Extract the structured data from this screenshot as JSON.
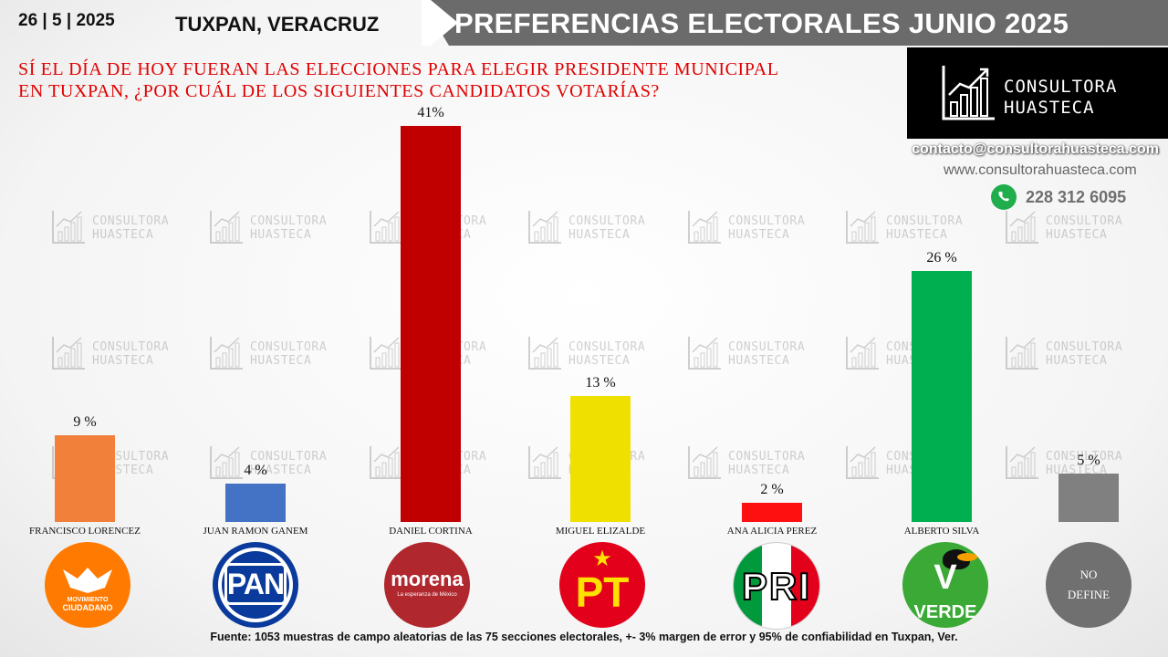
{
  "header": {
    "date": "26 | 5 | 2025",
    "location": "TUXPAN, VERACRUZ",
    "title": "PREFERENCIAS ELECTORALES JUNIO 2025"
  },
  "question_line1": "SÍ EL DÍA DE HOY FUERAN LAS ELECCIONES PARA ELEGIR PRESIDENTE MUNICIPAL",
  "question_line2": "EN TUXPAN,  ¿POR CUÁL DE LOS SIGUIENTES CANDIDATOS VOTARÍAS?",
  "brand": {
    "name_line1": "CONSULTORA",
    "name_line2": "HUASTECA",
    "email": "contacto@consultorahuasteca.com",
    "website": "www.consultorahuasteca.com",
    "phone": "228 312 6095",
    "phone_icon": "whatsapp-icon"
  },
  "chart_data": {
    "type": "bar",
    "categories": [
      "FRANCISCO LORENCEZ",
      "JUAN RAMON GANEM",
      "DANIEL CORTINA",
      "MIGUEL ELIZALDE",
      "ANA ALICIA PEREZ",
      "ALBERTO SILVA",
      "NO DEFINE"
    ],
    "values": [
      9,
      4,
      41,
      13,
      2,
      26,
      5
    ],
    "value_labels": [
      "9 %",
      "4 %",
      "41%",
      "13 %",
      "2 %",
      "26 %",
      "5 %"
    ],
    "colors": [
      "#f0803a",
      "#4472c4",
      "#c00000",
      "#f0e000",
      "#ff1010",
      "#00b050",
      "#808080"
    ],
    "ylim": [
      0,
      41
    ]
  },
  "parties": [
    {
      "name": "MOVIMIENTO CIUDADANO",
      "line1": "MOVIMIENTO",
      "line2": "CIUDADANO",
      "color": "#ff7a00"
    },
    {
      "name": "PAN",
      "color": "#0a3a9c"
    },
    {
      "name": "morena",
      "sub": "La esperanza de México",
      "color": "#b0272e"
    },
    {
      "name": "PT",
      "color": "#e3001b"
    },
    {
      "name": "PRI",
      "color": "#ffffff"
    },
    {
      "name": "VERDE",
      "color": "#3aa935"
    },
    {
      "name": "NO DEFINE",
      "line1": "NO",
      "line2": "DEFINE",
      "color": "#707070"
    }
  ],
  "footer": "Fuente:  1053 muestras de campo aleatorias de las 75 secciones electorales, +- 3% margen de error y 95% de confiabilidad en Tuxpan, Ver."
}
